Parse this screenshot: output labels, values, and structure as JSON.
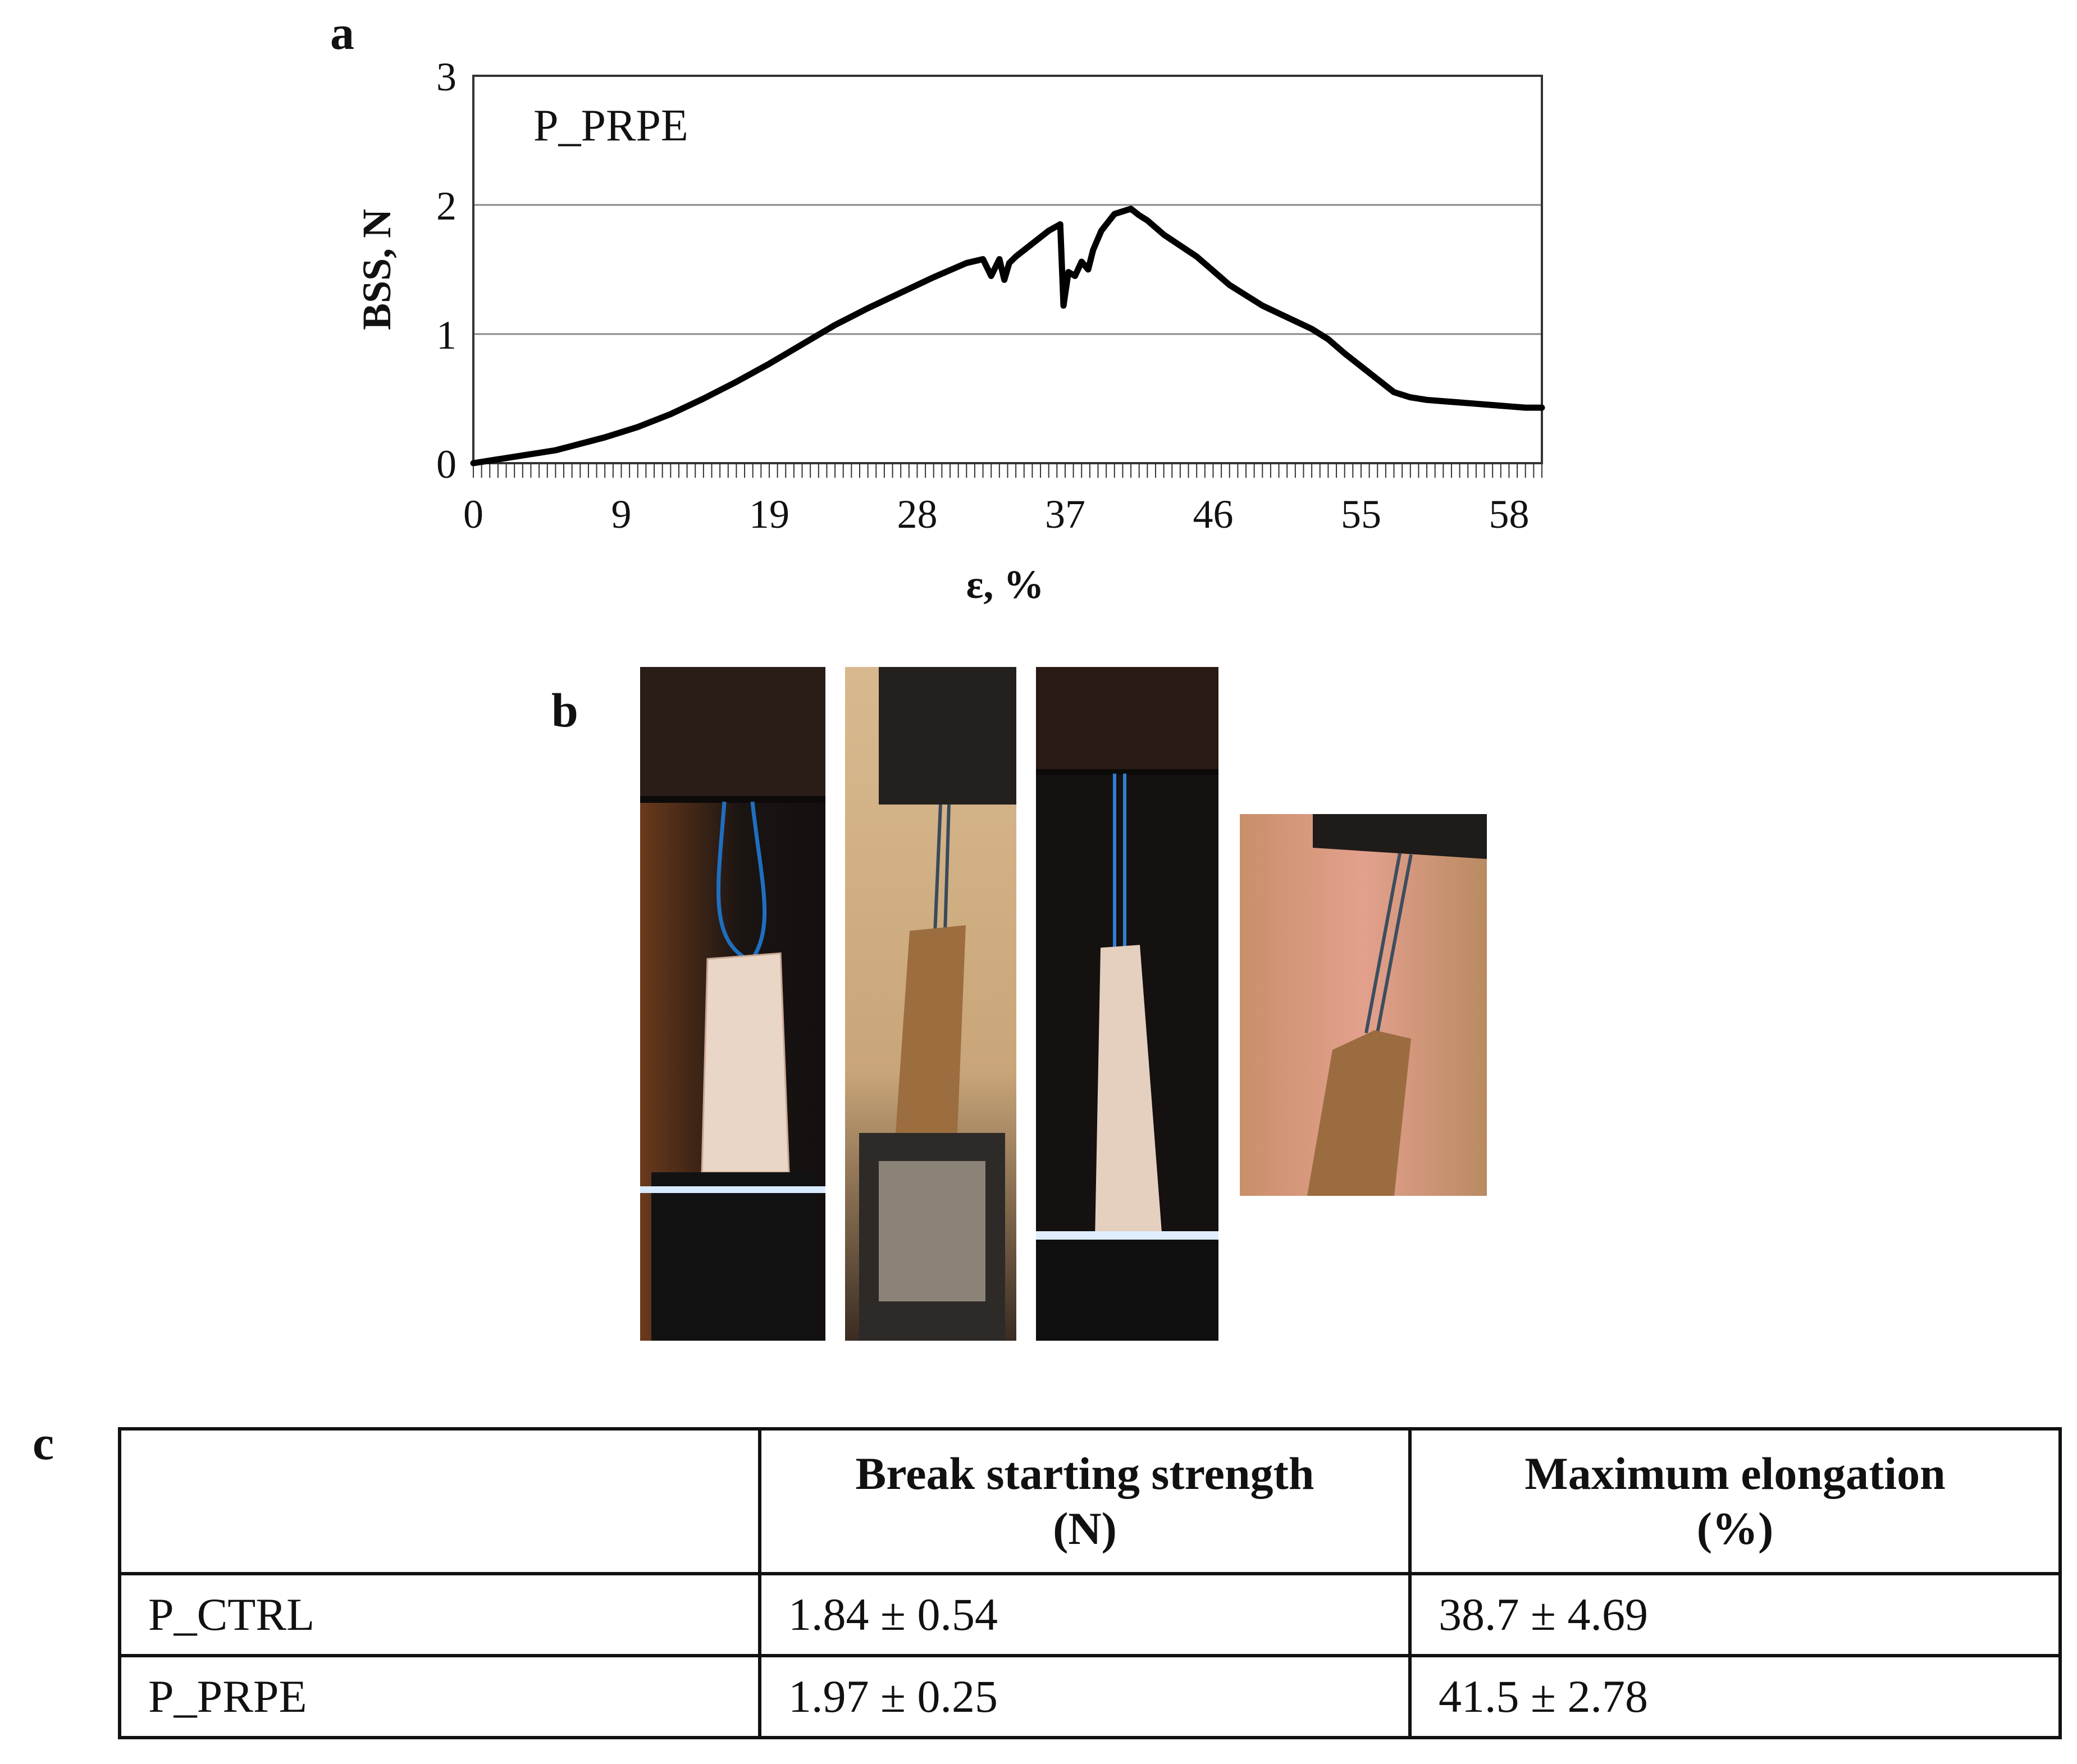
{
  "panels": {
    "a": "a",
    "b": "b",
    "c": "c"
  },
  "chart_data": {
    "type": "line",
    "annotation": "P_PRPE",
    "xlabel": "ε, %",
    "ylabel": "BSS, N",
    "xlim": [
      0,
      65
    ],
    "ylim": [
      0,
      3
    ],
    "x_tick_labels": [
      "0",
      "9",
      "19",
      "28",
      "37",
      "46",
      "55",
      "58"
    ],
    "x_tick_positions": [
      0,
      9,
      18,
      27,
      36,
      45,
      54,
      63
    ],
    "y_ticks": [
      0,
      1,
      2,
      3
    ],
    "grid": "horizontal",
    "series": [
      {
        "x": [
          0,
          2,
          5,
          8,
          10,
          12,
          14,
          16,
          18,
          20,
          22,
          24,
          26,
          28,
          30,
          31,
          31.5,
          32,
          32.3,
          32.6,
          33,
          34,
          35,
          35.7,
          35.9,
          36.2,
          36.6,
          37,
          37.4,
          37.7,
          38.2,
          39,
          40,
          40.5,
          41,
          42,
          44,
          46,
          47,
          48,
          50,
          51,
          52,
          53,
          54,
          55,
          56,
          57,
          58,
          59,
          60,
          61,
          62,
          63,
          64,
          65
        ],
        "y": [
          0,
          0.04,
          0.1,
          0.2,
          0.28,
          0.38,
          0.5,
          0.63,
          0.77,
          0.92,
          1.07,
          1.2,
          1.32,
          1.44,
          1.55,
          1.58,
          1.45,
          1.58,
          1.42,
          1.55,
          1.6,
          1.7,
          1.8,
          1.85,
          1.22,
          1.48,
          1.45,
          1.56,
          1.5,
          1.65,
          1.8,
          1.93,
          1.97,
          1.92,
          1.88,
          1.77,
          1.6,
          1.38,
          1.3,
          1.22,
          1.1,
          1.04,
          0.96,
          0.85,
          0.75,
          0.65,
          0.55,
          0.51,
          0.49,
          0.48,
          0.47,
          0.46,
          0.45,
          0.44,
          0.43,
          0.43
        ]
      }
    ]
  },
  "photos": [
    {
      "name": "specimen-ctrl-photo"
    },
    {
      "name": "specimen-prpe-photo"
    },
    {
      "name": "specimen-ctrl-stretched-photo"
    },
    {
      "name": "specimen-prpe-detail-photo"
    }
  ],
  "table": {
    "headers": [
      {
        "line1": "",
        "line2": ""
      },
      {
        "line1": "Break starting strength",
        "line2": "(N)"
      },
      {
        "line1": "Maximum elongation",
        "line2": "(%)"
      }
    ],
    "rows": [
      [
        "P_CTRL",
        "1.84 ± 0.54",
        "38.7 ± 4.69"
      ],
      [
        "P_PRPE",
        "1.97 ± 0.25",
        "41.5 ± 2.78"
      ]
    ]
  }
}
